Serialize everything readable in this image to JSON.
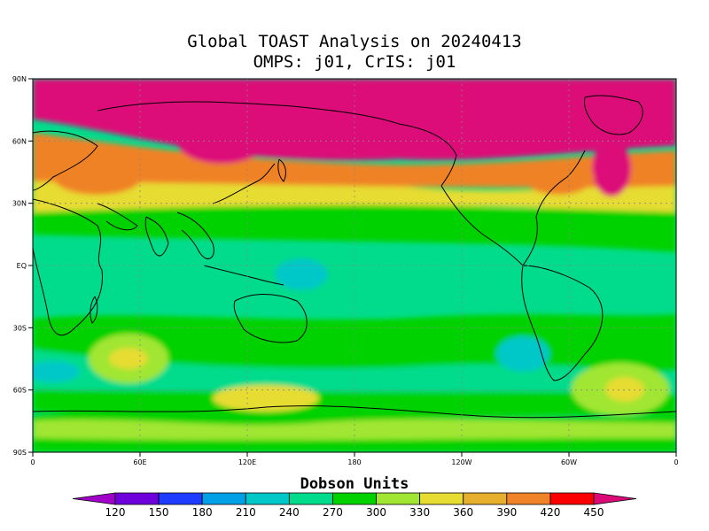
{
  "title_line1": "Global TOAST Analysis on 20240413",
  "title_line2": "OMPS: j01, CrIS: j01",
  "colorbar_title": "Dobson Units",
  "lat_ticks": [
    {
      "label": "90N",
      "lat": 90
    },
    {
      "label": "60N",
      "lat": 60
    },
    {
      "label": "30N",
      "lat": 30
    },
    {
      "label": "EQ",
      "lat": 0
    },
    {
      "label": "30S",
      "lat": -30
    },
    {
      "label": "60S",
      "lat": -60
    },
    {
      "label": "90S",
      "lat": -90
    }
  ],
  "lon_ticks": [
    {
      "label": "0",
      "lon": 0
    },
    {
      "label": "60E",
      "lon": 60
    },
    {
      "label": "120E",
      "lon": 120
    },
    {
      "label": "180",
      "lon": 180
    },
    {
      "label": "120W",
      "lon": 240
    },
    {
      "label": "60W",
      "lon": 300
    },
    {
      "label": "0",
      "lon": 360
    }
  ],
  "colorbar": {
    "levels": [
      "120",
      "150",
      "180",
      "210",
      "240",
      "270",
      "300",
      "330",
      "360",
      "390",
      "420",
      "450"
    ],
    "colors": [
      "#a000c8",
      "#6e00dc",
      "#1e3cff",
      "#00a0e6",
      "#00c8c8",
      "#00dc8c",
      "#00d200",
      "#a0e632",
      "#e6dc32",
      "#e6af2d",
      "#f08228",
      "#fa0000",
      "#dc0a78"
    ]
  },
  "colors": {
    "band_np": "#dc0a78",
    "band_hi": "#f08228",
    "band_mid": "#e6dc32",
    "band_trop": "#00dc8c",
    "band_trop2": "#00c8c8",
    "band_green": "#00d200",
    "band_lime": "#a0e632"
  }
}
